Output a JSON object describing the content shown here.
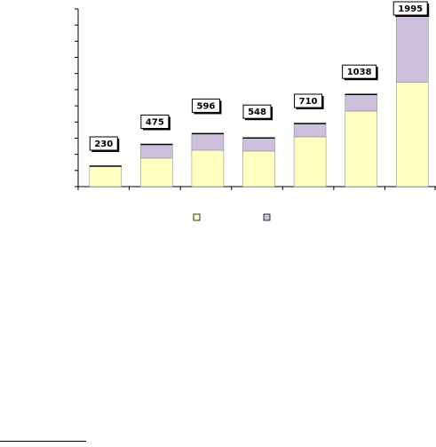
{
  "chart_data": {
    "type": "bar",
    "stacked": true,
    "categories": [
      "",
      "",
      "",
      "",
      "",
      "",
      ""
    ],
    "series": [
      {
        "color": "#ffffc0",
        "values": [
          230,
          320,
          410,
          400,
          560,
          850,
          1175
        ]
      },
      {
        "color": "#ccc0dd",
        "values": [
          0,
          155,
          186,
          148,
          150,
          188,
          820
        ]
      }
    ],
    "totals": [
      230,
      475,
      596,
      548,
      710,
      1038,
      1995
    ],
    "ylim": [
      0,
      2000
    ],
    "y_tick_step": 181.8,
    "grid": false,
    "legend": {
      "placement": "bottom"
    }
  }
}
